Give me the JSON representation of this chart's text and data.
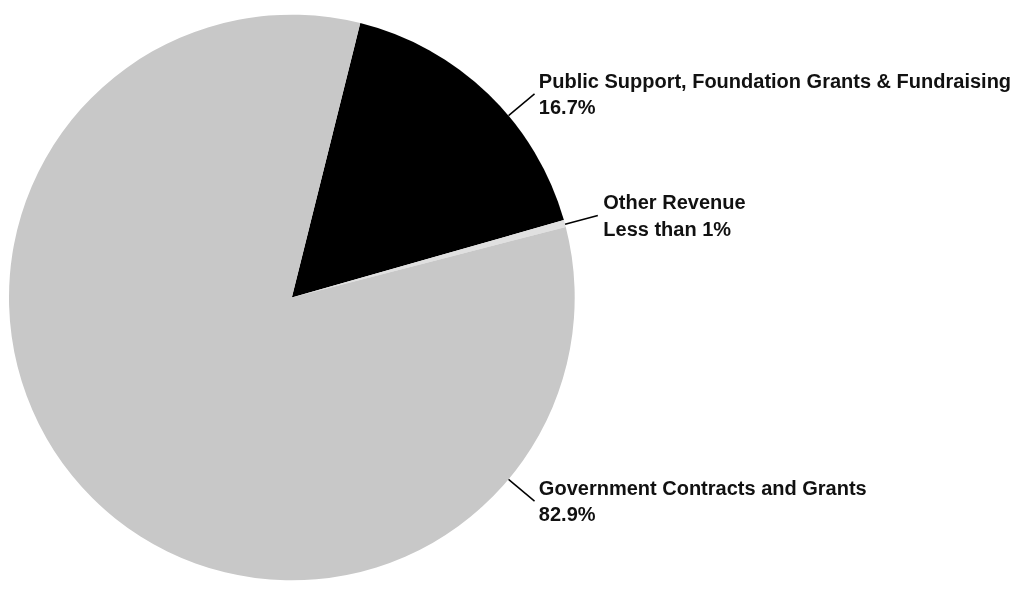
{
  "chart_data": {
    "type": "pie",
    "categories": [
      "Public Support, Foundation Grants & Fundraising",
      "Other Revenue",
      "Government Contracts and Grants"
    ],
    "values": [
      16.7,
      0.4,
      82.9
    ],
    "colors": [
      "#000000",
      "#e0e0e0",
      "#c8c8c8"
    ],
    "value_labels": [
      "16.7%",
      "Less than 1%",
      "82.9%"
    ]
  }
}
